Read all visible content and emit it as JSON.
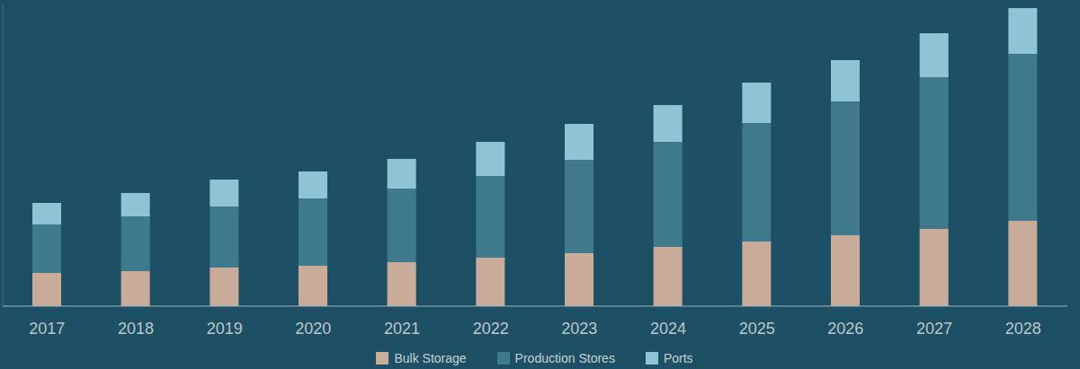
{
  "chart_data": {
    "type": "bar",
    "categories": [
      "2017",
      "2018",
      "2019",
      "2020",
      "2021",
      "2022",
      "2023",
      "2024",
      "2025",
      "2026",
      "2027",
      "2028"
    ],
    "series": [
      {
        "name": "Bulk Storage",
        "color": "#c9ab9a",
        "values": [
          37,
          39,
          43,
          45,
          49,
          54,
          59,
          66,
          72,
          79,
          86,
          95
        ]
      },
      {
        "name": "Production Stores",
        "color": "#3f7a8c",
        "values": [
          54,
          61,
          68,
          75,
          82,
          91,
          104,
          117,
          132,
          149,
          169,
          186
        ]
      },
      {
        "name": "Ports",
        "color": "#8ec5d4",
        "values": [
          24,
          26,
          30,
          30,
          33,
          38,
          40,
          41,
          45,
          46,
          49,
          51
        ]
      }
    ],
    "ylim": [
      0,
      335
    ],
    "stacked": true,
    "grid": false,
    "legend": "bottom",
    "tick_labels": "x"
  }
}
